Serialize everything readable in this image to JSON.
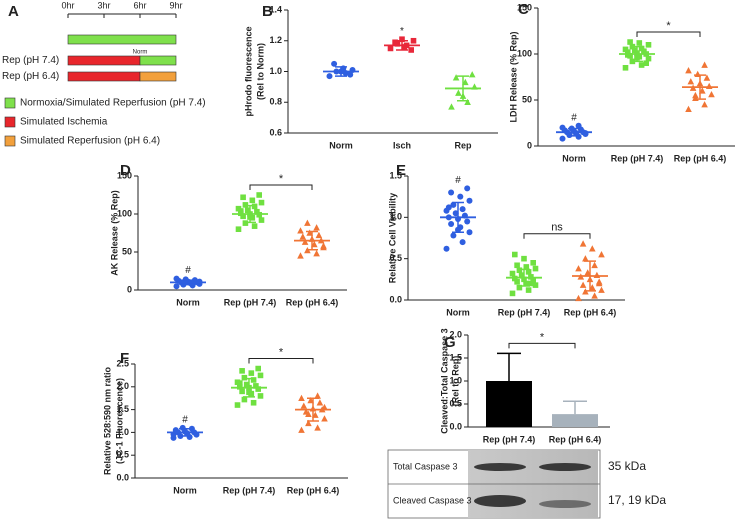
{
  "chart_data": [
    {
      "type": "timeline",
      "panel_label": "A",
      "xlim": [
        0,
        9
      ],
      "xticks": [
        {
          "value": 0,
          "label": "0hr"
        },
        {
          "value": 3,
          "label": "3hr"
        },
        {
          "value": 6,
          "label": "6hr"
        },
        {
          "value": 9,
          "label": "9hr"
        }
      ],
      "rows": [
        {
          "label": null,
          "segments": [
            {
              "start": 0,
              "end": 9,
              "color": "#7fe04c"
            }
          ]
        },
        {
          "label": "Rep (pH 7.4)",
          "segments": [
            {
              "start": 0,
              "end": 6,
              "color": "#e8262c"
            },
            {
              "start": 6,
              "end": 9,
              "color": "#7fe04c",
              "label": "Norm"
            }
          ]
        },
        {
          "label": "Rep (pH 6.4)",
          "segments": [
            {
              "start": 0,
              "end": 6,
              "color": "#e8262c"
            },
            {
              "start": 6,
              "end": 9,
              "color": "#f2a03c"
            }
          ]
        }
      ],
      "legend": [
        {
          "name": "Normoxia/Simulated Reperfusion (pH 7.4)",
          "color": "#7fe04c"
        },
        {
          "name": "Simulated Ischemia",
          "color": "#e8262c"
        },
        {
          "name": "Simulated Reperfusion (pH 6.4)",
          "color": "#f2a03c"
        }
      ]
    },
    {
      "type": "dotplot",
      "panel_label": "B",
      "ylabel": [
        "pHrodo fluorescence",
        "(Rel to Norm)"
      ],
      "categories": [
        "Norm",
        "Isch",
        "Rep"
      ],
      "colors": [
        "#2f5fe0",
        "#e8283a",
        "#6fe040"
      ],
      "markers": [
        "circle",
        "square",
        "triangle"
      ],
      "points": [
        [
          0.97,
          0.99,
          1.0,
          1.01,
          1.02,
          1.05,
          0.98,
          1.0
        ],
        [
          1.15,
          1.17,
          1.18,
          1.2,
          1.16,
          1.19,
          1.14,
          1.21
        ],
        [
          0.77,
          0.8,
          0.86,
          0.9,
          0.93,
          0.96,
          0.98,
          0.84
        ]
      ],
      "means": [
        1.0,
        1.17,
        0.89
      ],
      "sd": [
        0.03,
        0.03,
        0.08
      ],
      "ylim": [
        0.6,
        1.4
      ],
      "yticks": [
        0.6,
        0.8,
        {
          "value": 1,
          "label": "1.0"
        },
        1.2,
        1.4
      ],
      "annotations": [
        {
          "category": 1,
          "text": "*"
        }
      ],
      "brackets": []
    },
    {
      "type": "dotplot",
      "panel_label": "C",
      "ylabel": [
        "LDH Release (% Rep)"
      ],
      "categories": [
        "Norm",
        "Rep (pH 7.4)",
        "Rep (pH 6.4)"
      ],
      "colors": [
        "#2f5fe0",
        "#6fe040",
        "#f07535"
      ],
      "markers": [
        "circle",
        "square",
        "triangle"
      ],
      "points": [
        [
          8,
          10,
          12,
          13,
          14,
          15,
          15,
          16,
          17,
          18,
          19,
          20,
          22,
          12,
          14
        ],
        [
          85,
          88,
          92,
          95,
          97,
          98,
          100,
          101,
          102,
          103,
          104,
          105,
          106,
          108,
          110,
          112,
          113,
          90,
          96,
          99
        ],
        [
          40,
          45,
          52,
          56,
          60,
          63,
          65,
          68,
          70,
          74,
          78,
          82,
          88,
          55
        ]
      ],
      "means": [
        15,
        100,
        64
      ],
      "sd": [
        4,
        8,
        13
      ],
      "ylim": [
        0,
        150
      ],
      "yticks": [
        0,
        50,
        100,
        150
      ],
      "annotations": [
        {
          "category": 0,
          "text": "#"
        }
      ],
      "brackets": [
        {
          "categories": [
            1,
            2
          ],
          "text": "*"
        }
      ]
    },
    {
      "type": "dotplot",
      "panel_label": "D",
      "ylabel": [
        "AK Release (% Rep)"
      ],
      "categories": [
        "Norm",
        "Rep (pH 7.4)",
        "Rep (pH 6.4)"
      ],
      "colors": [
        "#2f5fe0",
        "#6fe040",
        "#f07535"
      ],
      "markers": [
        "circle",
        "square",
        "triangle"
      ],
      "points": [
        [
          5,
          6,
          7,
          8,
          9,
          10,
          10,
          11,
          12,
          13,
          14,
          15,
          8,
          9,
          11
        ],
        [
          80,
          84,
          88,
          92,
          95,
          97,
          99,
          100,
          101,
          103,
          105,
          107,
          110,
          112,
          115,
          118,
          122,
          125,
          96,
          104
        ],
        [
          45,
          48,
          52,
          56,
          60,
          63,
          65,
          67,
          70,
          72,
          75,
          78,
          82,
          88,
          58
        ]
      ],
      "means": [
        10,
        100,
        65
      ],
      "sd": [
        3,
        11,
        12
      ],
      "ylim": [
        0,
        150
      ],
      "yticks": [
        0,
        50,
        100,
        150
      ],
      "annotations": [
        {
          "category": 0,
          "text": "#"
        }
      ],
      "brackets": [
        {
          "categories": [
            1,
            2
          ],
          "text": "*"
        }
      ]
    },
    {
      "type": "dotplot",
      "panel_label": "E",
      "ylabel": [
        "Relative Cell Viability"
      ],
      "categories": [
        "Norm",
        "Rep (pH 7.4)",
        "Rep (pH 6.4)"
      ],
      "colors": [
        "#2f5fe0",
        "#6fe040",
        "#f07535"
      ],
      "markers": [
        "circle",
        "square",
        "triangle"
      ],
      "points": [
        [
          0.62,
          0.7,
          0.78,
          0.82,
          0.88,
          0.92,
          0.95,
          0.98,
          1.0,
          1.02,
          1.05,
          1.08,
          1.1,
          1.15,
          1.2,
          1.25,
          1.3,
          1.35,
          0.85,
          1.12
        ],
        [
          0.08,
          0.12,
          0.15,
          0.18,
          0.2,
          0.22,
          0.24,
          0.25,
          0.26,
          0.28,
          0.3,
          0.32,
          0.34,
          0.36,
          0.38,
          0.4,
          0.42,
          0.45,
          0.5,
          0.55,
          0.2,
          0.3
        ],
        [
          0.02,
          0.05,
          0.1,
          0.12,
          0.15,
          0.18,
          0.2,
          0.25,
          0.28,
          0.3,
          0.33,
          0.38,
          0.42,
          0.5,
          0.55,
          0.62,
          0.68,
          0.22
        ]
      ],
      "means": [
        1.0,
        0.27,
        0.29
      ],
      "sd": [
        0.18,
        0.1,
        0.18
      ],
      "ylim": [
        0,
        1.5
      ],
      "yticks": [
        {
          "value": 0,
          "label": "0.0"
        },
        0.5,
        {
          "value": 1,
          "label": "1.0"
        },
        1.5
      ],
      "annotations": [
        {
          "category": 0,
          "text": "#"
        }
      ],
      "brackets": [
        {
          "categories": [
            1,
            2
          ],
          "text": "ns"
        }
      ]
    },
    {
      "type": "dotplot",
      "panel_label": "F",
      "ylabel": [
        "Relative 528:590 nm ratio",
        "(JC-1 Fluorescence)"
      ],
      "categories": [
        "Norm",
        "Rep (pH 7.4)",
        "Rep (pH 6.4)"
      ],
      "colors": [
        "#2f5fe0",
        "#6fe040",
        "#f07535"
      ],
      "markers": [
        "circle",
        "square",
        "triangle"
      ],
      "points": [
        [
          0.88,
          0.9,
          0.92,
          0.95,
          0.98,
          1.0,
          1.0,
          1.02,
          1.05,
          1.08,
          1.1,
          0.96
        ],
        [
          1.6,
          1.65,
          1.72,
          1.8,
          1.85,
          1.9,
          1.95,
          1.98,
          2.0,
          2.02,
          2.05,
          2.1,
          2.15,
          2.2,
          2.25,
          2.3,
          2.35,
          2.4,
          1.88,
          2.08
        ],
        [
          1.05,
          1.1,
          1.2,
          1.3,
          1.38,
          1.45,
          1.5,
          1.52,
          1.58,
          1.65,
          1.7,
          1.75,
          1.8,
          1.4,
          1.55
        ]
      ],
      "means": [
        1.0,
        1.98,
        1.5
      ],
      "sd": [
        0.08,
        0.2,
        0.25
      ],
      "ylim": [
        0,
        2.5
      ],
      "yticks": [
        {
          "value": 0,
          "label": "0.0"
        },
        0.5,
        {
          "value": 1,
          "label": "1.0"
        },
        1.5,
        {
          "value": 2,
          "label": "2.0"
        },
        2.5
      ],
      "annotations": [
        {
          "category": 0,
          "text": "#"
        }
      ],
      "brackets": [
        {
          "categories": [
            1,
            2
          ],
          "text": "*"
        }
      ]
    },
    {
      "type": "bar",
      "panel_label": "G",
      "ylabel": [
        "Cleaved:Total Caspase 3",
        "(Rel to Rep)"
      ],
      "categories": [
        "Rep (pH 7.4)",
        "Rep (pH 6.4)"
      ],
      "values": [
        1.0,
        0.28
      ],
      "errors": [
        0.6,
        0.28
      ],
      "colors": [
        "#000000",
        "#a7b2bc"
      ],
      "ylim": [
        0,
        2
      ],
      "yticks": [
        {
          "value": 0,
          "label": "0.0"
        },
        0.5,
        {
          "value": 1,
          "label": "1.0"
        },
        1.5,
        {
          "value": 2,
          "label": "2.0"
        }
      ],
      "brackets": [
        {
          "categories": [
            0,
            1
          ],
          "text": "*"
        }
      ],
      "blot": [
        {
          "label": "Total Caspase 3",
          "size": "35 kDa"
        },
        {
          "label": "Cleaved Caspase 3",
          "size": "17, 19 kDa"
        }
      ]
    }
  ]
}
